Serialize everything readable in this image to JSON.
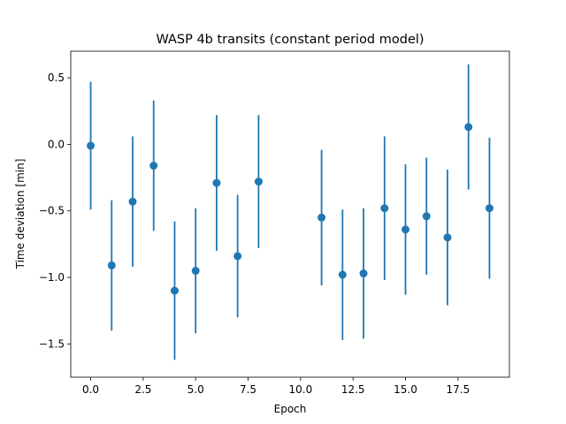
{
  "chart_data": {
    "type": "scatter",
    "title": "WASP 4b transits (constant period model)",
    "xlabel": "Epoch",
    "ylabel": "Time deviation [min]",
    "xlim": [
      -0.95,
      19.95
    ],
    "ylim": [
      -1.75,
      0.7
    ],
    "xticks": [
      0.0,
      2.5,
      5.0,
      7.5,
      10.0,
      12.5,
      15.0,
      17.5
    ],
    "xtick_labels": [
      "0.0",
      "2.5",
      "5.0",
      "7.5",
      "10.0",
      "12.5",
      "15.0",
      "17.5"
    ],
    "yticks": [
      0.5,
      0.0,
      -0.5,
      -1.0,
      -1.5
    ],
    "ytick_labels": [
      "0.5",
      "0.0",
      "−0.5",
      "−1.0",
      "−1.5"
    ],
    "grid": false,
    "legend": "none",
    "series": [
      {
        "color": "#1f77b4",
        "marker": "circle",
        "x": [
          0,
          1,
          2,
          3,
          4,
          5,
          6,
          7,
          8,
          11,
          12,
          13,
          14,
          15,
          16,
          17,
          18,
          19
        ],
        "y": [
          -0.01,
          -0.91,
          -0.43,
          -0.16,
          -1.1,
          -0.95,
          -0.29,
          -0.84,
          -0.28,
          -0.55,
          -0.98,
          -0.97,
          -0.48,
          -0.64,
          -0.54,
          -0.7,
          0.13,
          -0.48
        ],
        "yerr": [
          0.48,
          0.49,
          0.49,
          0.49,
          0.52,
          0.47,
          0.51,
          0.46,
          0.5,
          0.51,
          0.49,
          0.49,
          0.54,
          0.49,
          0.44,
          0.51,
          0.47,
          0.53
        ]
      }
    ]
  }
}
